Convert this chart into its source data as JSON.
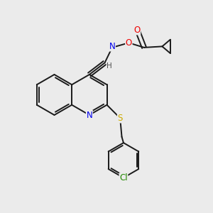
{
  "background_color": "#ebebeb",
  "bond_color": "#1a1a1a",
  "atom_colors": {
    "N": "#0000ee",
    "O": "#ee0000",
    "S": "#ccaa00",
    "Cl": "#228800",
    "H": "#505050"
  },
  "lw": 1.4,
  "fs": 8.5,
  "xlim": [
    0,
    10
  ],
  "ylim": [
    0,
    10
  ]
}
